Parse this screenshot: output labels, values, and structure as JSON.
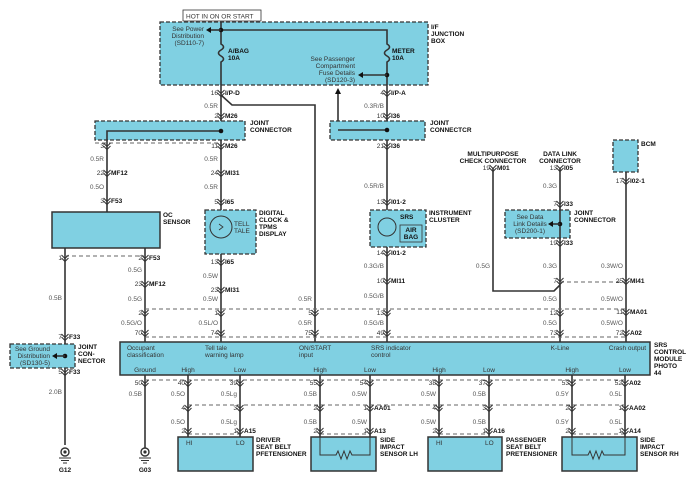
{
  "header": {
    "hot": "HOT IN ON OR START"
  },
  "junction_box": {
    "title": [
      "I/F",
      "JUNCTION",
      "BOX"
    ],
    "see_power": [
      "See Power",
      "Distribution",
      "(SD110-7)"
    ],
    "fuse_abag": [
      "A/BAG",
      "10A"
    ],
    "fuse_meter": [
      "METER",
      "10A"
    ],
    "see_passenger": [
      "See Passenger",
      "Compartment",
      "Fuse Details",
      "(SD120-3)"
    ]
  },
  "joint_m26": {
    "title": [
      "JOINT",
      "CONNECTOR"
    ]
  },
  "joint_i36": {
    "title": [
      "JOINT",
      "CONNECTCR"
    ]
  },
  "oc_sensor": {
    "title": [
      "OC",
      "SENSOR"
    ]
  },
  "clock": {
    "title": [
      "DIGITAL",
      "CLOCK &",
      "TPMS",
      "DISPLAY"
    ],
    "lamp": [
      "TELL",
      "TALE"
    ]
  },
  "cluster": {
    "title": [
      "INSTRUMENT",
      "CLUSTER"
    ],
    "srs": "SRS",
    "airbag": [
      "AIR",
      "BAG"
    ]
  },
  "mpc": {
    "title": [
      "MULTIPURPOSE",
      "CHECK CONNECTOR"
    ]
  },
  "dlc": {
    "title": [
      "DATA LINK",
      "CONNECTOR"
    ]
  },
  "joint_i33": {
    "title": [
      "JOINT",
      "CONNECTOR"
    ],
    "see": [
      "See Data",
      "Link Details",
      "(SD200-1)"
    ]
  },
  "bcm": {
    "title": "BCM"
  },
  "joint_f33": {
    "title": [
      "JOINT",
      "CON-",
      "NECTOR"
    ],
    "see": [
      "See Ground",
      "Distribution",
      "(SD130-5)"
    ]
  },
  "grounds": {
    "g12": "G12",
    "g03": "G03"
  },
  "srs_module": {
    "title": [
      "SRS",
      "CONTROL",
      "MODULE",
      "PHOTO",
      "44"
    ],
    "top_labels": [
      [
        "Occupant",
        "classification"
      ],
      [
        "Tell tale",
        "warning lamp"
      ],
      [
        "ON/START",
        "input"
      ],
      [
        "SRS indicator",
        "control"
      ],
      [
        "K-Line"
      ],
      [
        "Crash output"
      ]
    ],
    "bottom_labels": [
      "Ground",
      "High",
      "Low",
      "High",
      "Low",
      "High",
      "Low",
      "High",
      "Low"
    ]
  },
  "devices": {
    "driver": {
      "title": [
        "DRIVER",
        "SEAT BELT",
        "PFETENSIONER"
      ],
      "hi": "HI",
      "lo": "LO"
    },
    "side_lh": {
      "title": [
        "SIDE",
        "IMPACT",
        "SENSOR LH"
      ]
    },
    "passenger": {
      "title": [
        "PASSENGER",
        "SEAT BELT",
        "PRETENSIONER"
      ],
      "hi": "HI",
      "lo": "LO"
    },
    "side_rh": {
      "title": [
        "SIDE",
        "IMPACT",
        "SENSOR RH"
      ]
    }
  },
  "wires": {
    "abag_feed": [
      "16",
      "I/P-D",
      "0.5R",
      "2",
      "M26",
      "11",
      "M26",
      "0.5R",
      "24",
      "MI31",
      "0.5R",
      "5",
      "I65",
      "13",
      "I65",
      "0.5W",
      "23",
      "MI31",
      "0.5W",
      "1",
      "0.5L/O",
      "74"
    ],
    "meter_feed": [
      "4",
      "I/P-A",
      "0.3R/B",
      "10",
      "I36",
      "21",
      "I36",
      "0.5R/B",
      "13",
      "I01-2",
      "14",
      "I01-2",
      "0.3G/B",
      "10",
      "MI11",
      "0.5G/B",
      "13",
      "0.5G/B",
      "49"
    ],
    "oc_supply": [
      "3",
      "0.5R",
      "22",
      "MF12",
      "0.5O",
      "3",
      "F53"
    ],
    "oc_ground": [
      "1",
      "0.5B",
      "7",
      "F33",
      "5",
      "F33",
      "2.0B"
    ],
    "oc_signal": [
      "2",
      "F53",
      "0.5G",
      "23",
      "MF12",
      "0.5G",
      "2",
      "0.5G/O",
      "70"
    ],
    "on_start": [
      "0.5R",
      "5",
      "0.5R",
      "75"
    ],
    "mpc": [
      "19",
      "M01",
      "0.5G"
    ],
    "k_line": [
      "13",
      "I05",
      "0.3G",
      "7",
      "I33",
      "19",
      "I33",
      "0.3G",
      "7",
      "0.5G",
      "12",
      "0.5G",
      "73"
    ],
    "crash_output": [
      "17",
      "I02-1",
      "0.3W/O",
      "25",
      "MI41",
      "0.5W/O",
      "11",
      "MA01",
      "0.5W/O",
      "72",
      "A02"
    ],
    "ground": [
      "50",
      "0.5B"
    ],
    "driver_high": [
      "40",
      "0.5O",
      "4",
      "0.5O",
      "2"
    ],
    "driver_low": [
      "39",
      "0.5Lg",
      "3",
      "0.5Lg",
      "1",
      "A15"
    ],
    "lh_high": [
      "55",
      "0.5B",
      "2",
      "0.5B",
      "2"
    ],
    "lh_low": [
      "54",
      "0.5W",
      "1",
      "AA01",
      "0.5W",
      "1",
      "A13"
    ],
    "pass_high": [
      "38",
      "0.5W",
      "4",
      "0.5W",
      "2"
    ],
    "pass_low": [
      "37",
      "0.5B",
      "3",
      "0.5B",
      "1",
      "A16"
    ],
    "rh_high": [
      "53",
      "0.5Y",
      "2",
      "0.5Y",
      "2"
    ],
    "rh_low": [
      "52",
      "A02",
      "0.5L",
      "1",
      "AA02",
      "0.5L",
      "1",
      "A14"
    ]
  },
  "colors": {
    "component_fill": "#80d0e2",
    "wire": "#333333"
  }
}
